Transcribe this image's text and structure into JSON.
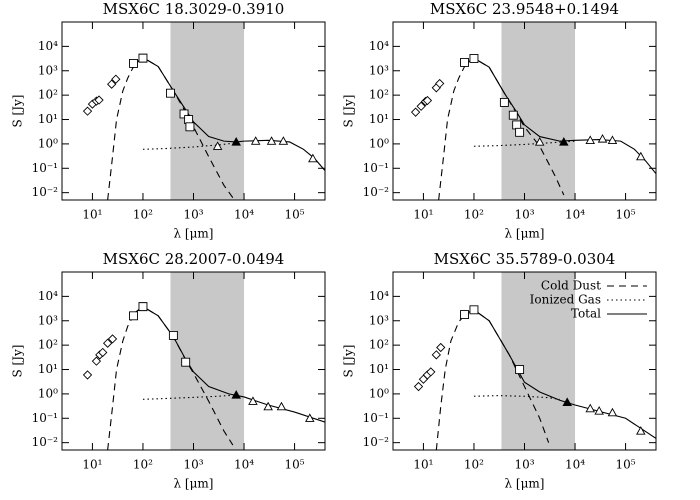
{
  "chart_data": [
    {
      "type": "line",
      "title": "MSX6C 18.3029-0.3910",
      "xlabel": "λ [μm]",
      "ylabel": "S [Jy]",
      "color": "#000000",
      "shade_color": "#c8c8c8",
      "xscale": "log",
      "yscale": "log",
      "xlim": [
        2.5,
        400000
      ],
      "ylim": [
        0.005,
        100000
      ],
      "shaded_range": [
        350,
        10000
      ],
      "xticks": [
        {
          "value": 10,
          "label": "10¹"
        },
        {
          "value": 100,
          "label": "10²"
        },
        {
          "value": 1000,
          "label": "10³"
        },
        {
          "value": 10000,
          "label": "10⁴"
        },
        {
          "value": 100000,
          "label": "10⁵"
        }
      ],
      "yticks": [
        {
          "value": 0.01,
          "label": "10⁻²"
        },
        {
          "value": 0.1,
          "label": "10⁻¹"
        },
        {
          "value": 1,
          "label": "10⁰"
        },
        {
          "value": 10,
          "label": "10¹"
        },
        {
          "value": 100,
          "label": "10²"
        },
        {
          "value": 1000,
          "label": "10³"
        },
        {
          "value": 10000,
          "label": "10⁴"
        }
      ],
      "series": [
        {
          "line": "dashed",
          "x": [
            20,
            25,
            30,
            40,
            50,
            70,
            100,
            200,
            400,
            700,
            1000,
            2000,
            4000,
            7000
          ],
          "values": [
            0.005,
            0.3,
            10,
            150,
            500,
            2000,
            3500,
            1500,
            150,
            20,
            5,
            0.3,
            0.02,
            0.004
          ]
        },
        {
          "line": "dotted",
          "x": [
            100,
            300,
            1000,
            3000,
            7000
          ],
          "values": [
            0.6,
            0.65,
            0.75,
            0.9,
            1.1
          ]
        },
        {
          "line": "solid",
          "x": [
            70,
            100,
            200,
            400,
            700,
            1000,
            2000,
            4000,
            7000,
            10000,
            30000,
            80000,
            150000,
            250000,
            400000
          ],
          "values": [
            2000,
            3500,
            1500,
            150,
            25,
            8,
            2,
            1.3,
            1.2,
            1.3,
            1.4,
            1.2,
            0.6,
            0.25,
            0.08
          ]
        },
        {
          "marker": "diamond",
          "x": [
            8,
            10,
            12,
            13.5,
            24,
            29
          ],
          "values": [
            22,
            43,
            57,
            63,
            280,
            450
          ]
        },
        {
          "marker": "square",
          "x": [
            65,
            100,
            350,
            650,
            800,
            850
          ],
          "values": [
            2000,
            3300,
            120,
            17,
            10,
            5
          ]
        },
        {
          "marker": "triangle",
          "x": [
            3000,
            17000,
            35000,
            60000,
            230000
          ],
          "values": [
            0.8,
            1.3,
            1.3,
            1.3,
            0.25
          ]
        },
        {
          "marker": "triangle",
          "filled": true,
          "x": [
            7000
          ],
          "values": [
            1.2
          ]
        }
      ]
    },
    {
      "type": "line",
      "title": "MSX6C 23.9548+0.1494",
      "xlabel": "λ [μm]",
      "ylabel": "S [Jy]",
      "color": "#000000",
      "shade_color": "#c8c8c8",
      "xscale": "log",
      "yscale": "log",
      "xlim": [
        2.5,
        400000
      ],
      "ylim": [
        0.005,
        100000
      ],
      "shaded_range": [
        350,
        10000
      ],
      "xticks": [
        {
          "value": 10,
          "label": "10¹"
        },
        {
          "value": 100,
          "label": "10²"
        },
        {
          "value": 1000,
          "label": "10³"
        },
        {
          "value": 10000,
          "label": "10⁴"
        },
        {
          "value": 100000,
          "label": "10⁵"
        }
      ],
      "yticks": [
        {
          "value": 0.01,
          "label": "10⁻²"
        },
        {
          "value": 0.1,
          "label": "10⁻¹"
        },
        {
          "value": 1,
          "label": "10⁰"
        },
        {
          "value": 10,
          "label": "10¹"
        },
        {
          "value": 100,
          "label": "10²"
        },
        {
          "value": 1000,
          "label": "10³"
        },
        {
          "value": 10000,
          "label": "10⁴"
        }
      ],
      "series": [
        {
          "line": "dashed",
          "x": [
            20,
            25,
            30,
            40,
            50,
            70,
            100,
            200,
            400,
            700,
            1000,
            2000,
            4000,
            6000
          ],
          "values": [
            0.005,
            0.3,
            10,
            150,
            500,
            2000,
            3300,
            1400,
            120,
            18,
            5,
            0.8,
            0.05,
            0.008
          ]
        },
        {
          "line": "dotted",
          "x": [
            100,
            300,
            1000,
            3000,
            10000
          ],
          "values": [
            0.8,
            0.85,
            0.95,
            1.1,
            1.3
          ]
        },
        {
          "line": "solid",
          "x": [
            70,
            100,
            200,
            400,
            700,
            1000,
            2000,
            5000,
            10000,
            30000,
            80000,
            150000,
            250000,
            400000
          ],
          "values": [
            2000,
            3300,
            1400,
            120,
            20,
            6,
            2,
            1.3,
            1.4,
            1.5,
            1.3,
            0.6,
            0.2,
            0.06
          ]
        },
        {
          "marker": "diamond",
          "x": [
            7,
            9,
            11,
            12,
            18,
            21
          ],
          "values": [
            20,
            35,
            55,
            60,
            200,
            300
          ]
        },
        {
          "marker": "square",
          "x": [
            65,
            100,
            400,
            600,
            700,
            800
          ],
          "values": [
            2200,
            3200,
            50,
            15,
            6,
            3
          ]
        },
        {
          "marker": "triangle",
          "x": [
            2000,
            20000,
            35000,
            55000,
            200000
          ],
          "values": [
            1.2,
            1.4,
            1.6,
            1.4,
            0.3
          ]
        },
        {
          "marker": "triangle",
          "filled": true,
          "x": [
            6000
          ],
          "values": [
            1.2
          ]
        }
      ]
    },
    {
      "type": "line",
      "title": "MSX6C 28.2007-0.0494",
      "xlabel": "λ [μm]",
      "ylabel": "S [Jy]",
      "color": "#000000",
      "shade_color": "#c8c8c8",
      "xscale": "log",
      "yscale": "log",
      "xlim": [
        2.5,
        400000
      ],
      "ylim": [
        0.005,
        100000
      ],
      "shaded_range": [
        350,
        10000
      ],
      "xticks": [
        {
          "value": 10,
          "label": "10¹"
        },
        {
          "value": 100,
          "label": "10²"
        },
        {
          "value": 1000,
          "label": "10³"
        },
        {
          "value": 10000,
          "label": "10⁴"
        },
        {
          "value": 100000,
          "label": "10⁵"
        }
      ],
      "yticks": [
        {
          "value": 0.01,
          "label": "10⁻²"
        },
        {
          "value": 0.1,
          "label": "10⁻¹"
        },
        {
          "value": 1,
          "label": "10⁰"
        },
        {
          "value": 10,
          "label": "10¹"
        },
        {
          "value": 100,
          "label": "10²"
        },
        {
          "value": 1000,
          "label": "10³"
        },
        {
          "value": 10000,
          "label": "10⁴"
        }
      ],
      "series": [
        {
          "line": "dashed",
          "x": [
            20,
            25,
            30,
            40,
            50,
            70,
            100,
            200,
            400,
            700,
            1000,
            2000,
            4000,
            6000
          ],
          "values": [
            0.005,
            0.3,
            10,
            150,
            600,
            2200,
            3800,
            1600,
            220,
            25,
            7,
            0.5,
            0.03,
            0.008
          ]
        },
        {
          "line": "dotted",
          "x": [
            100,
            300,
            1000,
            3000,
            7000
          ],
          "values": [
            0.6,
            0.65,
            0.72,
            0.8,
            0.9
          ]
        },
        {
          "line": "solid",
          "x": [
            70,
            100,
            200,
            400,
            700,
            1000,
            2000,
            5000,
            10000,
            30000,
            100000,
            400000
          ],
          "values": [
            2200,
            3800,
            1600,
            220,
            26,
            8,
            2,
            1,
            0.75,
            0.35,
            0.18,
            0.07
          ]
        },
        {
          "marker": "diamond",
          "x": [
            8,
            12,
            14,
            16,
            20,
            25
          ],
          "values": [
            6,
            22,
            40,
            50,
            120,
            180
          ]
        },
        {
          "marker": "square",
          "x": [
            65,
            100,
            400,
            700
          ],
          "values": [
            1600,
            3800,
            250,
            20
          ]
        },
        {
          "marker": "triangle",
          "x": [
            15000,
            30000,
            55000,
            200000
          ],
          "values": [
            0.5,
            0.3,
            0.3,
            0.1
          ]
        },
        {
          "marker": "triangle",
          "filled": true,
          "x": [
            7000
          ],
          "values": [
            0.9
          ]
        }
      ]
    },
    {
      "type": "line",
      "title": "MSX6C 35.5789-0.0304",
      "xlabel": "λ [μm]",
      "ylabel": "S [Jy]",
      "color": "#000000",
      "shade_color": "#c8c8c8",
      "legend": "upper right",
      "xscale": "log",
      "yscale": "log",
      "xlim": [
        2.5,
        400000
      ],
      "ylim": [
        0.005,
        100000
      ],
      "shaded_range": [
        350,
        10000
      ],
      "xticks": [
        {
          "value": 10,
          "label": "10¹"
        },
        {
          "value": 100,
          "label": "10²"
        },
        {
          "value": 1000,
          "label": "10³"
        },
        {
          "value": 10000,
          "label": "10⁴"
        },
        {
          "value": 100000,
          "label": "10⁵"
        }
      ],
      "yticks": [
        {
          "value": 0.01,
          "label": "10⁻²"
        },
        {
          "value": 0.1,
          "label": "10⁻¹"
        },
        {
          "value": 1,
          "label": "10⁰"
        },
        {
          "value": 10,
          "label": "10¹"
        },
        {
          "value": 100,
          "label": "10²"
        },
        {
          "value": 1000,
          "label": "10³"
        },
        {
          "value": 10000,
          "label": "10⁴"
        }
      ],
      "series": [
        {
          "name": "Cold Dust",
          "line": "dashed",
          "x": [
            18,
            22,
            27,
            35,
            50,
            70,
            100,
            200,
            500,
            1000,
            2000,
            3000
          ],
          "values": [
            0.005,
            0.3,
            10,
            150,
            900,
            2000,
            2800,
            1000,
            40,
            2,
            0.1,
            0.01
          ]
        },
        {
          "name": "Ionized Gas",
          "line": "dotted",
          "x": [
            100,
            300,
            1000,
            3000,
            5000
          ],
          "values": [
            0.8,
            0.85,
            0.8,
            0.7,
            0.6
          ]
        },
        {
          "name": "Total",
          "line": "solid",
          "x": [
            70,
            100,
            200,
            500,
            1000,
            2000,
            5000,
            10000,
            100000,
            400000
          ],
          "values": [
            2000,
            2800,
            1000,
            40,
            3,
            1.2,
            0.55,
            0.35,
            0.1,
            0.015
          ]
        },
        {
          "marker": "diamond",
          "x": [
            8,
            10,
            12,
            14,
            18,
            22
          ],
          "values": [
            2,
            4,
            6,
            8,
            40,
            80
          ]
        },
        {
          "marker": "square",
          "x": [
            65,
            100,
            800
          ],
          "values": [
            1800,
            2800,
            10
          ]
        },
        {
          "marker": "triangle",
          "x": [
            20000,
            30000,
            55000,
            200000
          ],
          "values": [
            0.25,
            0.2,
            0.17,
            0.03
          ]
        },
        {
          "marker": "triangle",
          "filled": true,
          "x": [
            7000
          ],
          "values": [
            0.45
          ]
        }
      ]
    }
  ]
}
